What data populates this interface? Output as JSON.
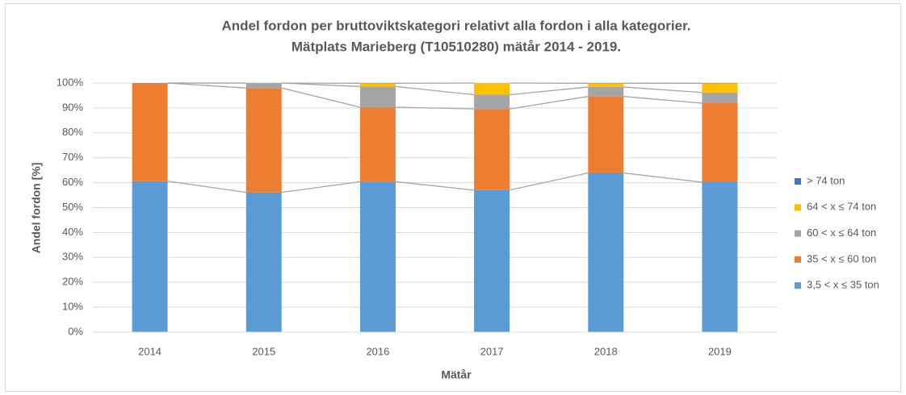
{
  "chart_data": {
    "type": "stacked_bar",
    "title": [
      "Andel fordon per bruttoviktskategori relativt alla fordon i alla kategorier.",
      "Mätplats Marieberg (T10510280) mätår 2014 - 2019."
    ],
    "x_label": "Mätår",
    "y_label": "Andel fordon [%]",
    "categories": [
      "2014",
      "2015",
      "2016",
      "2017",
      "2018",
      "2019"
    ],
    "series": [
      {
        "name": "3,5 < x ≤ 35 ton",
        "color": "#5b9bd5",
        "values": [
          60.6,
          56.1,
          60.4,
          57.0,
          63.9,
          60.2
        ]
      },
      {
        "name": "35 < x ≤ 60 ton",
        "color": "#ed7d31",
        "values": [
          39.4,
          41.9,
          29.9,
          32.6,
          30.7,
          31.7
        ]
      },
      {
        "name": "60 < x ≤ 64 ton",
        "color": "#a5a5a5",
        "values": [
          0,
          2.0,
          8.3,
          5.7,
          3.8,
          4.3
        ]
      },
      {
        "name": "64 < x ≤ 74 ton",
        "color": "#ffc000",
        "values": [
          0,
          0,
          1.3,
          4.7,
          1.5,
          3.7
        ]
      },
      {
        "name": "> 74 ton",
        "color": "#4472c4",
        "values": [
          0,
          0,
          0.1,
          0,
          0.1,
          0.1
        ]
      }
    ],
    "ylim": [
      0,
      100
    ],
    "yticks": [
      {
        "value": 0,
        "label": "0%"
      },
      {
        "value": 10,
        "label": "10%"
      },
      {
        "value": 20,
        "label": "20%"
      },
      {
        "value": 30,
        "label": "30%"
      },
      {
        "value": 40,
        "label": "40%"
      },
      {
        "value": 50,
        "label": "50%"
      },
      {
        "value": 60,
        "label": "60%"
      },
      {
        "value": 70,
        "label": "70%"
      },
      {
        "value": 80,
        "label": "80%"
      },
      {
        "value": 90,
        "label": "90%"
      },
      {
        "value": 100,
        "label": "100%"
      }
    ],
    "grid": true,
    "legend": "right"
  }
}
